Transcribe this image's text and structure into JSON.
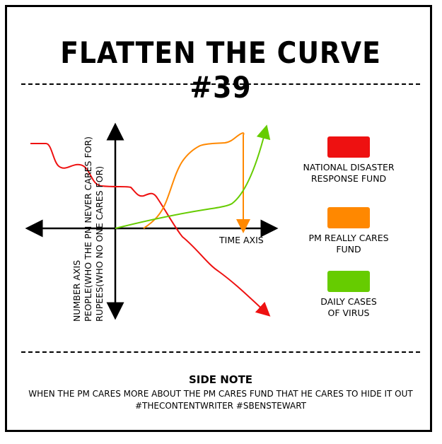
{
  "title": "FLATTEN THE CURVE #39",
  "side_note": {
    "heading": "SIDE NOTE",
    "line1": "WHEN THE PM CARES MORE ABOUT THE PM CARES FUND THAT HE CARES TO HIDE IT OUT",
    "line2": "#THECONTENTWRITER #SBENSTEWART"
  },
  "chart_data": {
    "type": "line",
    "xlabel": "TIME AXIS",
    "ylabel_lines": [
      "NUMBER AXIS",
      "PEOPLE(WHO THE PM NEVER CARES FOR)",
      "RUPEES(WHO NO ONE CARES FOR)"
    ],
    "grid": false,
    "legend_position": "right",
    "series": [
      {
        "name": "NATIONAL DISASTER RESPONSE FUND",
        "legend_lines": [
          "NATIONAL DISASTER",
          "RESPONSE FUND"
        ],
        "color": "#ee1111",
        "trend": "decreasing"
      },
      {
        "name": "PM REALLY CARES FUND",
        "legend_lines": [
          "PM REALLY CARES",
          "FUND"
        ],
        "color": "#ff8800",
        "trend": "rising then dropping"
      },
      {
        "name": "DAILY CASES OF VIRUS",
        "legend_lines": [
          "DAILY CASES",
          "OF VIRUS"
        ],
        "color": "#66cc00",
        "trend": "increasing"
      }
    ]
  }
}
